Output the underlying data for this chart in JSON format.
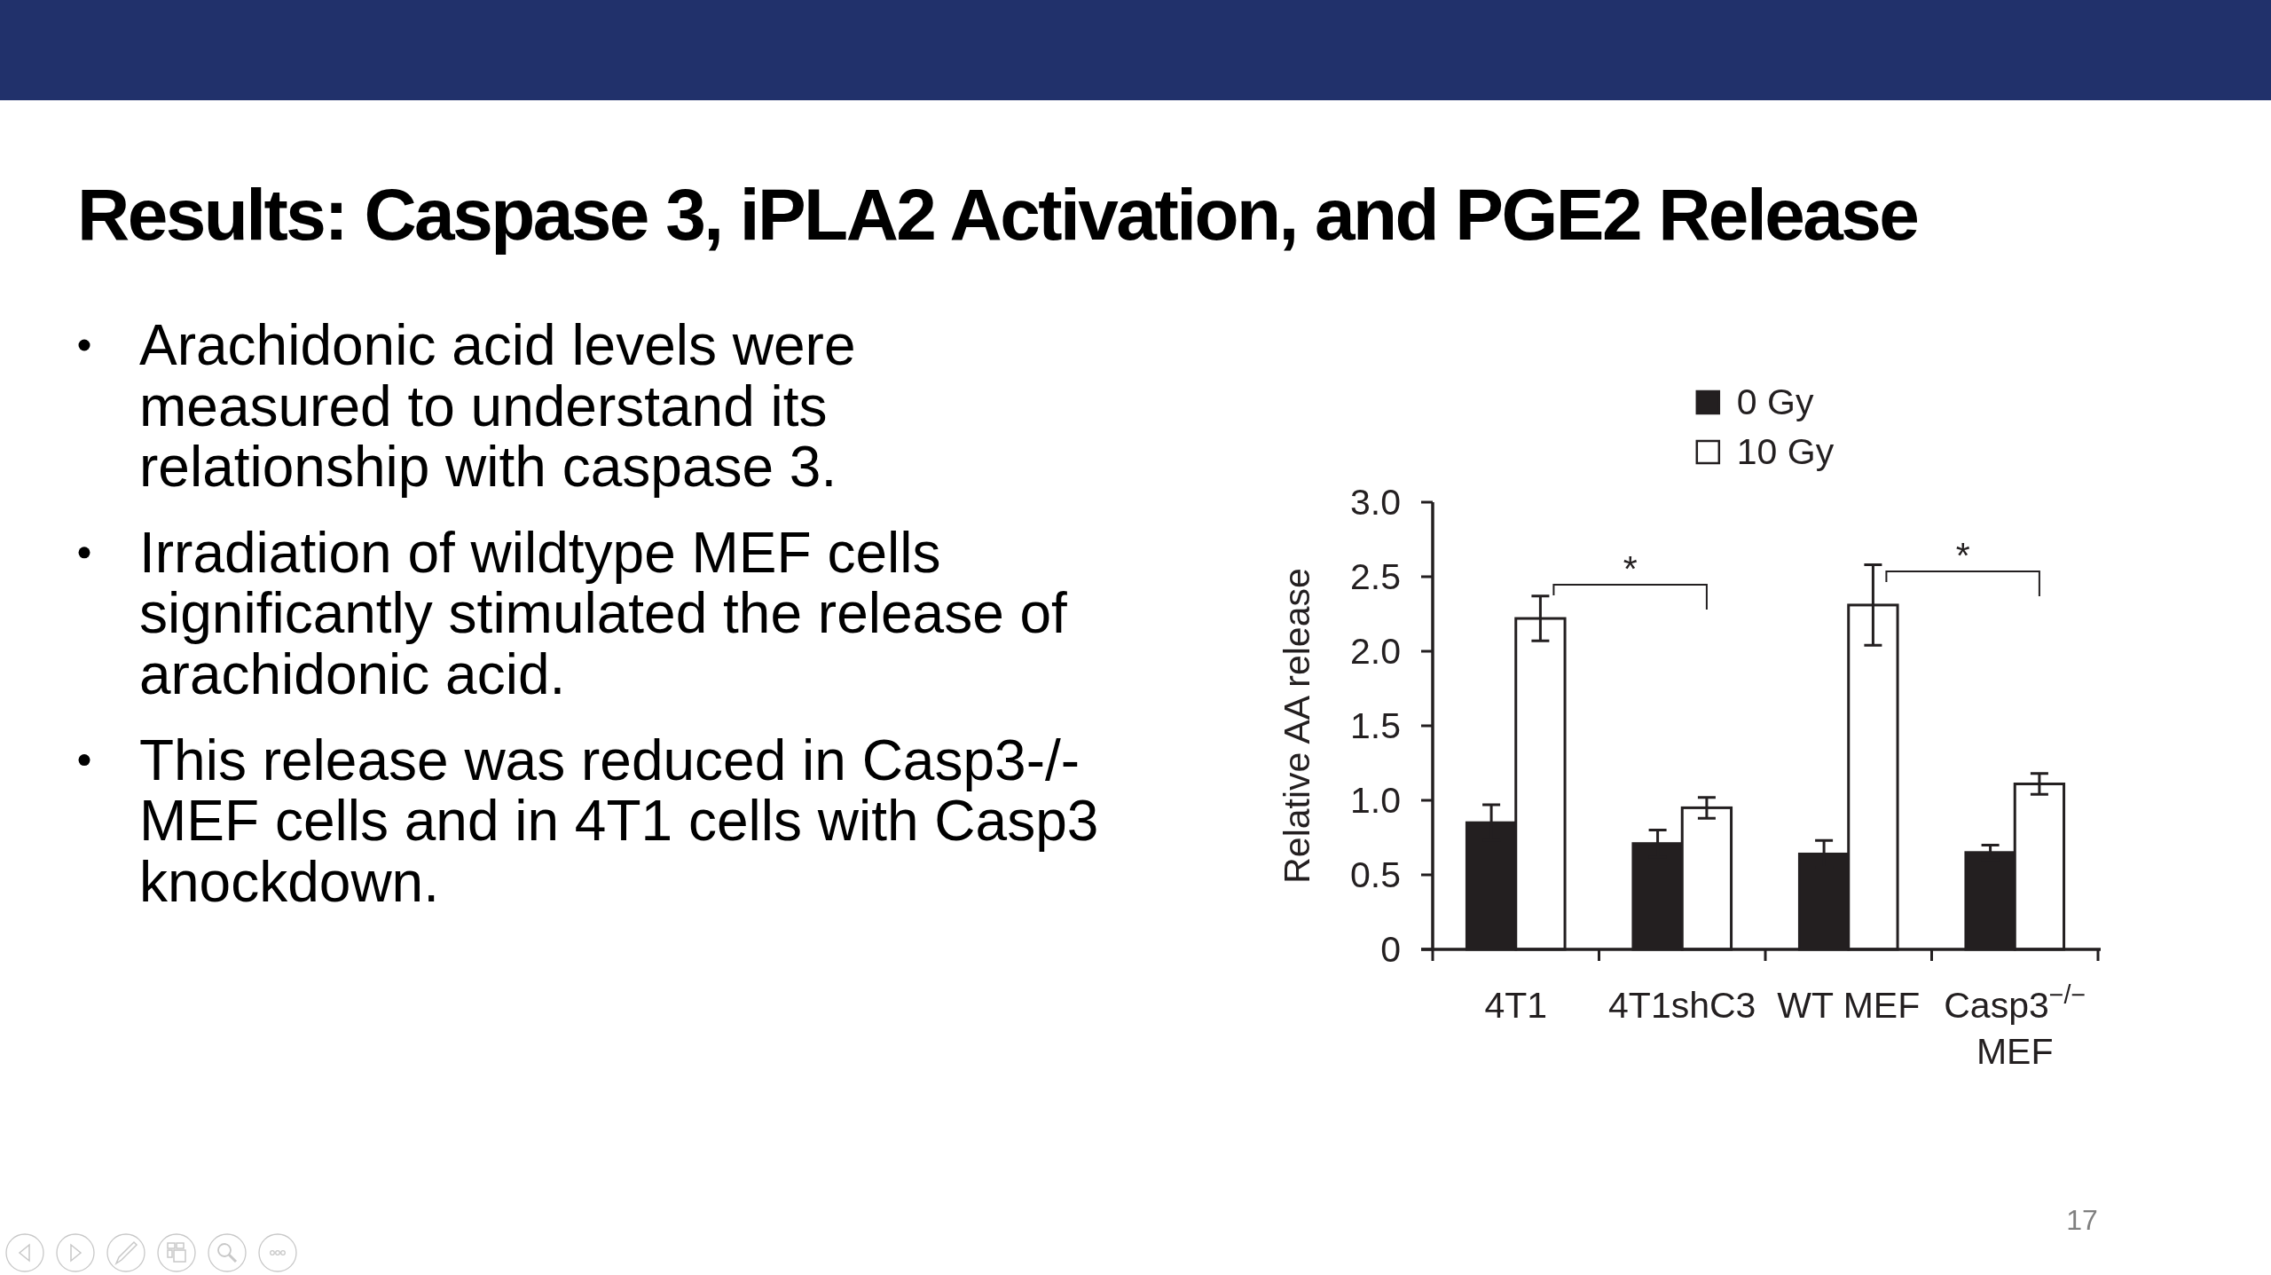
{
  "chart_data": {
    "type": "bar",
    "title": "Results: Caspase 3, iPLA2 Activation, and PGE2 Release",
    "ylabel": "Relative AA release",
    "categories": [
      "4T1",
      "4T1shC3",
      "WT MEF",
      "Casp3$^{−/−}$ MEF"
    ],
    "series": [
      {
        "name": "0 Gy",
        "color": "#231f20",
        "values": [
          0.85,
          0.71,
          0.64,
          0.65
        ],
        "errors": [
          0.12,
          0.09,
          0.09,
          0.05
        ]
      },
      {
        "name": "10 Gy",
        "color": "#ffffff",
        "values": [
          2.22,
          0.95,
          2.31,
          1.11
        ],
        "errors": [
          0.15,
          0.07,
          0.27,
          0.07
        ]
      }
    ],
    "ylim": [
      0,
      3
    ],
    "yticks": [
      0,
      0.5,
      {
        "value": 1,
        "label": "1.0"
      },
      1.5,
      {
        "value": 2,
        "label": "2.0"
      },
      2.5,
      {
        "value": 3,
        "label": "3.0"
      }
    ],
    "legend": "top",
    "annotations": [
      "Arachidonic acid levels were measured to understand its relationship with caspase 3.",
      "Irradiation of wildtype MEF cells significantly stimulated the release of arachidonic acid.",
      "This release was reduced in Casp3-/- MEF cells and in 4T1 cells with Casp3 knockdown.",
      "*",
      "*",
      "17"
    ]
  }
}
